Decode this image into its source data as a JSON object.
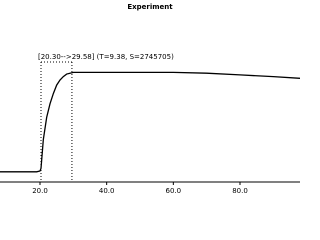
{
  "chart_data": {
    "type": "line",
    "title": "Experiment",
    "annotation": "[20.30-->29.58]  (T=9.38, S=2745705)",
    "marker_lines": [
      20.3,
      29.58
    ],
    "x": [
      8,
      12,
      16,
      19,
      20,
      20.3,
      21,
      22,
      23,
      24,
      25,
      26,
      27,
      28,
      29,
      30,
      35,
      40,
      50,
      60,
      70,
      80,
      90,
      98
    ],
    "series": [
      {
        "color": "#000000",
        "values": [
          6,
          6,
          6,
          6,
          6.5,
          8,
          25,
          38,
          46,
          52,
          57,
          60,
          62,
          63.5,
          64,
          64.5,
          64.5,
          64.5,
          64.5,
          64.5,
          64,
          63,
          62,
          61
        ]
      }
    ],
    "xlim": [
      8,
      98
    ],
    "ylim": [
      0,
      100
    ],
    "xticks": [
      {
        "value": 20,
        "label": "20.0"
      },
      {
        "value": 40,
        "label": "40.0"
      },
      {
        "value": 60,
        "label": "60.0"
      },
      {
        "value": 80,
        "label": "80.0"
      }
    ]
  }
}
